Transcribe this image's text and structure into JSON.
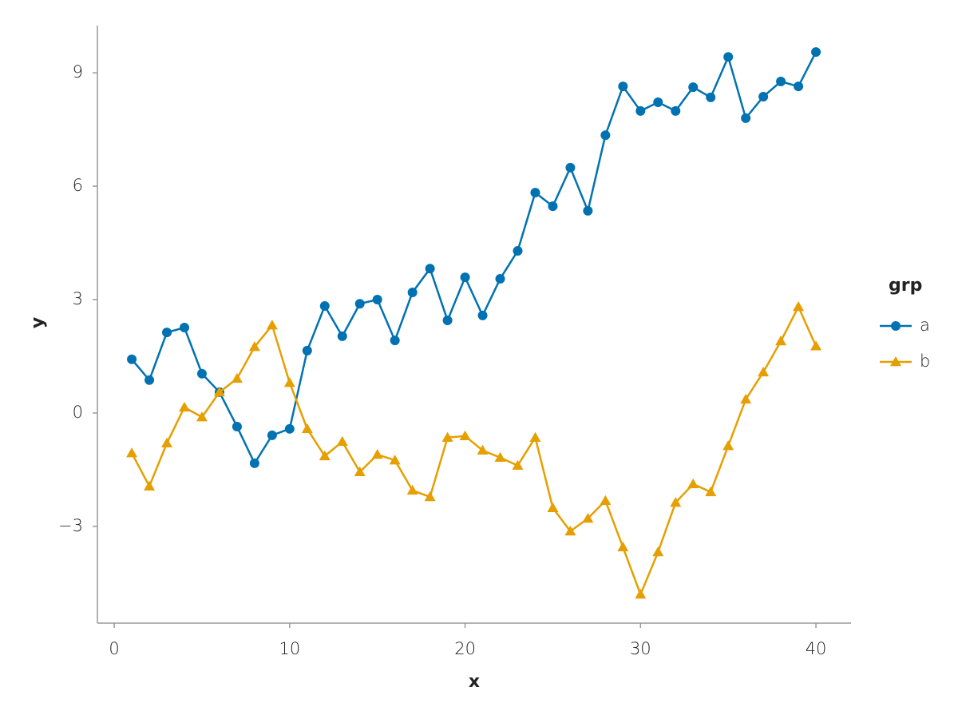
{
  "chart_data": {
    "type": "line",
    "x_label": "x",
    "y_label": "y",
    "legend_title": "grp",
    "x": [
      1,
      2,
      3,
      4,
      5,
      6,
      7,
      8,
      9,
      10,
      11,
      12,
      13,
      14,
      15,
      16,
      17,
      18,
      19,
      20,
      21,
      22,
      23,
      24,
      25,
      26,
      27,
      28,
      29,
      30,
      31,
      32,
      33,
      34,
      35,
      36,
      37,
      38,
      39,
      40
    ],
    "series": [
      {
        "name": "a",
        "color": "#0072b2",
        "marker": "circle",
        "values": [
          1.42,
          0.87,
          2.13,
          2.26,
          1.04,
          0.55,
          -0.36,
          -1.33,
          -0.59,
          -0.42,
          1.65,
          2.83,
          2.03,
          2.89,
          3.0,
          1.92,
          3.19,
          3.82,
          2.45,
          3.59,
          2.58,
          3.55,
          4.29,
          5.83,
          5.47,
          6.49,
          5.35,
          7.35,
          8.64,
          7.99,
          8.22,
          7.99,
          8.62,
          8.35,
          9.42,
          7.8,
          8.37,
          8.77,
          8.64,
          9.55
        ]
      },
      {
        "name": "b",
        "color": "#e69f00",
        "marker": "triangle",
        "values": [
          -1.06,
          -1.94,
          -0.8,
          0.15,
          -0.11,
          0.55,
          0.91,
          1.75,
          2.32,
          0.8,
          -0.42,
          -1.14,
          -0.76,
          -1.56,
          -1.1,
          -1.25,
          -2.05,
          -2.22,
          -0.65,
          -0.61,
          -0.99,
          -1.18,
          -1.39,
          -0.65,
          -2.51,
          -3.13,
          -2.79,
          -2.32,
          -3.55,
          -4.8,
          -3.68,
          -2.37,
          -1.88,
          -2.09,
          -0.87,
          0.36,
          1.08,
          1.9,
          2.81,
          1.77
        ]
      }
    ],
    "xlim": [
      -0.96,
      42.0
    ],
    "ylim": [
      -5.56,
      10.25
    ],
    "xticks": [
      0,
      10,
      20,
      30,
      40
    ],
    "yticks": [
      {
        "value": -3,
        "label": "−3"
      },
      0,
      3,
      6,
      9
    ],
    "grid": false
  }
}
